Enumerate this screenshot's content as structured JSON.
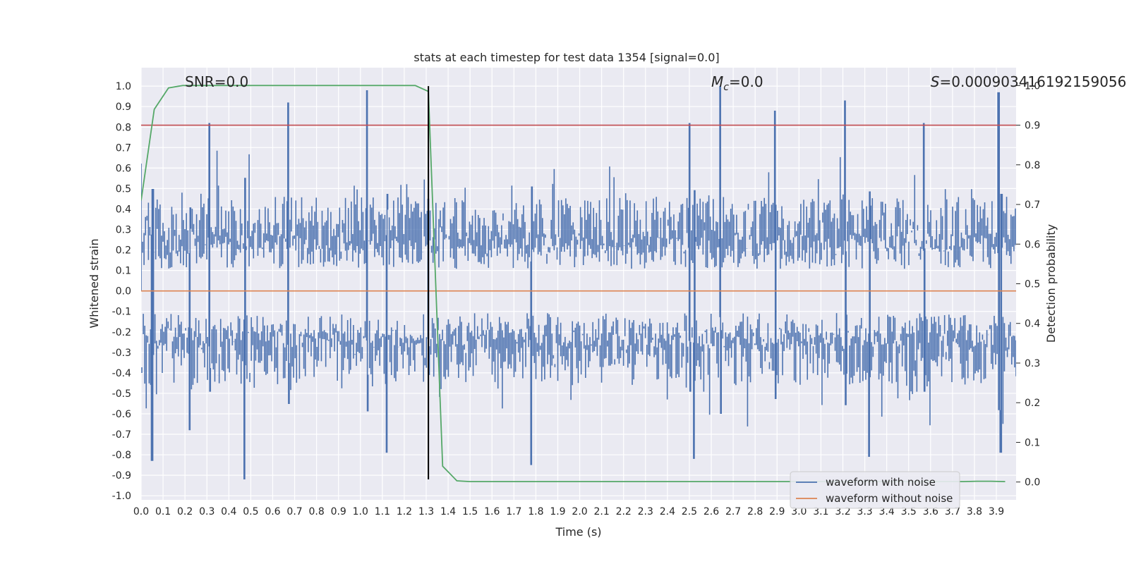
{
  "chart_data": {
    "type": "line",
    "title": "stats at each timestep for test data 1354 [signal=0.0]",
    "xlabel": "Time (s)",
    "ylabel": "Whitened strain",
    "y2label": "Detection probability",
    "xlim": [
      0.0,
      3.99
    ],
    "ylim": [
      -1.02,
      1.09
    ],
    "y2lim": [
      -0.045,
      1.045
    ],
    "x_ticks": [
      "0.0",
      "0.1",
      "0.2",
      "0.3",
      "0.4",
      "0.5",
      "0.6",
      "0.7",
      "0.8",
      "0.9",
      "1.0",
      "1.1",
      "1.2",
      "1.3",
      "1.4",
      "1.5",
      "1.6",
      "1.7",
      "1.8",
      "1.9",
      "2.0",
      "2.1",
      "2.2",
      "2.3",
      "2.4",
      "2.5",
      "2.6",
      "2.7",
      "2.8",
      "2.9",
      "3.0",
      "3.1",
      "3.2",
      "3.3",
      "3.4",
      "3.5",
      "3.6",
      "3.7",
      "3.8",
      "3.9"
    ],
    "y_ticks": [
      "-1.0",
      "-0.9",
      "-0.8",
      "-0.7",
      "-0.6",
      "-0.5",
      "-0.4",
      "-0.3",
      "-0.2",
      "-0.1",
      "0.0",
      "0.1",
      "0.2",
      "0.3",
      "0.4",
      "0.5",
      "0.6",
      "0.7",
      "0.8",
      "0.9",
      "1.0"
    ],
    "y2_ticks": [
      "0.0",
      "0.1",
      "0.2",
      "0.3",
      "0.4",
      "0.5",
      "0.6",
      "0.7",
      "0.8",
      "0.9",
      "1.0"
    ],
    "grid": true,
    "legend_position": "lower-right",
    "annotations": [
      {
        "text": "SNR=0.0",
        "x": 0.2
      },
      {
        "text": "Mc=0.0",
        "x": 2.6
      },
      {
        "text": "S=0.000903416192159056",
        "x": 3.6
      }
    ],
    "series": [
      {
        "name": "waveform with noise",
        "color": "#4c72b0",
        "sample_rate_hz": 1024,
        "envelope_peaks": [
          {
            "x": 0.05,
            "y": -0.83
          },
          {
            "x": 0.22,
            "y": -0.68
          },
          {
            "x": 0.31,
            "y": 0.82
          },
          {
            "x": 0.47,
            "y": -0.92
          },
          {
            "x": 0.67,
            "y": 0.92
          },
          {
            "x": 1.03,
            "y": 0.98
          },
          {
            "x": 1.12,
            "y": -0.79
          },
          {
            "x": 1.31,
            "y": 0.45
          },
          {
            "x": 1.78,
            "y": -0.85
          },
          {
            "x": 2.5,
            "y": 0.82
          },
          {
            "x": 2.52,
            "y": -0.82
          },
          {
            "x": 2.64,
            "y": 1.0
          },
          {
            "x": 2.89,
            "y": 0.88
          },
          {
            "x": 3.21,
            "y": 0.93
          },
          {
            "x": 3.32,
            "y": -0.81
          },
          {
            "x": 3.57,
            "y": 0.82
          },
          {
            "x": 3.91,
            "y": 0.97
          },
          {
            "x": 3.92,
            "y": -0.79
          }
        ]
      },
      {
        "name": "waveform without noise",
        "color": "#dd8452",
        "x": [
          0.0,
          3.99
        ],
        "y": [
          0.0,
          0.0
        ]
      },
      {
        "name": "",
        "axis": "right",
        "color": "#55a868",
        "x": [
          0.0,
          0.06,
          0.125,
          0.19,
          0.25,
          0.31,
          0.375,
          0.44,
          0.5,
          0.56,
          0.625,
          0.69,
          0.75,
          0.81,
          0.875,
          0.94,
          1.0,
          1.06,
          1.125,
          1.19,
          1.25,
          1.31,
          1.375,
          1.44,
          1.5,
          1.56,
          1.625,
          1.69,
          1.75,
          1.81,
          1.875,
          1.94,
          2.0,
          2.06,
          2.125,
          2.19,
          2.25,
          2.31,
          2.375,
          2.44,
          2.5,
          2.56,
          2.625,
          2.69,
          2.75,
          2.81,
          2.875,
          2.94,
          3.0,
          3.06,
          3.125,
          3.19,
          3.25,
          3.31,
          3.375,
          3.44,
          3.5,
          3.56,
          3.625,
          3.69,
          3.75,
          3.81,
          3.875,
          3.94
        ],
        "y": [
          0.71,
          0.94,
          0.994,
          1.0,
          1.0,
          1.0,
          1.0,
          1.0,
          1.0,
          1.0,
          1.0,
          1.0,
          1.0,
          1.0,
          1.0,
          1.0,
          1.0,
          1.0,
          1.0,
          1.0,
          1.0,
          0.985,
          0.04,
          0.003,
          0.001,
          0.001,
          0.001,
          0.001,
          0.001,
          0.001,
          0.001,
          0.001,
          0.001,
          0.001,
          0.001,
          0.001,
          0.001,
          0.001,
          0.001,
          0.001,
          0.001,
          0.001,
          0.001,
          0.001,
          0.001,
          0.001,
          0.001,
          0.001,
          0.001,
          0.001,
          0.001,
          0.001,
          0.001,
          0.001,
          0.001,
          0.001,
          0.001,
          0.001,
          0.001,
          0.001,
          0.001,
          0.002,
          0.002,
          0.001
        ]
      }
    ],
    "hlines": [
      {
        "axis": "right",
        "y": 0.9,
        "color": "#c44e52"
      }
    ],
    "vlines": [
      {
        "x": 1.31,
        "ymin": -0.92,
        "ymax": 1.0,
        "color": "#000000"
      }
    ]
  }
}
